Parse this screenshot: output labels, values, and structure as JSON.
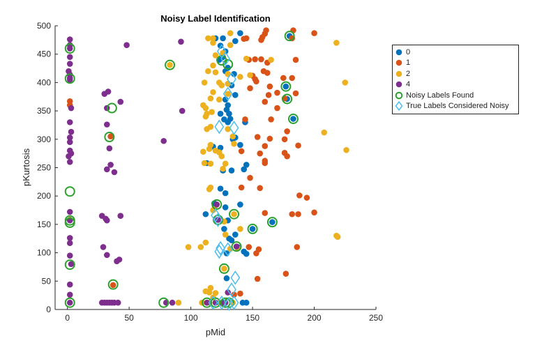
{
  "chart_data": {
    "type": "scatter",
    "title": "Noisy Label Identification",
    "xlabel": "pMid",
    "ylabel": "pKurtosis",
    "xlim": [
      -10,
      250
    ],
    "ylim": [
      0,
      500
    ],
    "xticks": [
      "0",
      "50",
      "100",
      "150",
      "200",
      "250"
    ],
    "yticks": [
      "0",
      "50",
      "100",
      "150",
      "200",
      "250",
      "300",
      "350",
      "400",
      "450",
      "500"
    ],
    "grid": false,
    "legend_position": "outside-top-right",
    "series": [
      {
        "name": "0",
        "color": "#0072BD",
        "marker": "filled-circle",
        "points": [
          [
            120,
            478
          ],
          [
            126,
            478
          ],
          [
            140,
            487
          ],
          [
            136,
            473
          ],
          [
            124,
            465
          ],
          [
            128,
            455
          ],
          [
            126,
            445
          ],
          [
            123,
            440
          ],
          [
            130,
            426
          ],
          [
            128,
            420
          ],
          [
            135,
            415
          ],
          [
            133,
            395
          ],
          [
            136,
            378
          ],
          [
            128,
            370
          ],
          [
            130,
            360
          ],
          [
            129,
            352
          ],
          [
            131,
            345
          ],
          [
            132,
            336
          ],
          [
            124,
            345
          ],
          [
            127,
            335
          ],
          [
            130,
            330
          ],
          [
            134,
            300
          ],
          [
            136,
            303
          ],
          [
            144,
            330
          ],
          [
            124,
            285
          ],
          [
            118,
            287
          ],
          [
            140,
            290
          ],
          [
            145,
            255
          ],
          [
            126,
            245
          ],
          [
            133,
            245
          ],
          [
            143,
            247
          ],
          [
            113,
            258
          ],
          [
            124,
            213
          ],
          [
            128,
            205
          ],
          [
            119,
            187
          ],
          [
            128,
            180
          ],
          [
            140,
            185
          ],
          [
            112,
            168
          ],
          [
            130,
            157
          ],
          [
            127,
            142
          ],
          [
            136,
            132
          ],
          [
            131,
            125
          ],
          [
            133,
            122
          ],
          [
            138,
            110
          ],
          [
            143,
            102
          ],
          [
            145,
            98
          ],
          [
            129,
            99
          ],
          [
            129,
            55
          ],
          [
            126,
            12
          ],
          [
            142,
            12
          ],
          [
            145,
            12
          ],
          [
            180,
            482
          ],
          [
            177,
            393
          ],
          [
            178,
            371
          ],
          [
            183,
            336
          ],
          [
            150,
            142
          ],
          [
            166,
            154
          ]
        ]
      },
      {
        "name": "1",
        "color": "#D95319",
        "marker": "filled-circle",
        "points": [
          [
            2,
            367
          ],
          [
            2,
            360
          ],
          [
            2,
            158
          ],
          [
            37,
            43
          ],
          [
            35,
            305
          ],
          [
            161,
            492
          ],
          [
            160,
            486
          ],
          [
            183,
            492
          ],
          [
            200,
            487
          ],
          [
            182,
            478
          ],
          [
            158,
            480
          ],
          [
            157,
            475
          ],
          [
            145,
            478
          ],
          [
            143,
            477
          ],
          [
            152,
            441
          ],
          [
            157,
            441
          ],
          [
            147,
            440
          ],
          [
            162,
            435
          ],
          [
            175,
            408
          ],
          [
            182,
            408
          ],
          [
            150,
            412
          ],
          [
            152,
            406
          ],
          [
            159,
            420
          ],
          [
            162,
            417
          ],
          [
            153,
            402
          ],
          [
            185,
            440
          ],
          [
            148,
            390
          ],
          [
            164,
            393
          ],
          [
            170,
            382
          ],
          [
            163,
            378
          ],
          [
            185,
            381
          ],
          [
            176,
            372
          ],
          [
            170,
            355
          ],
          [
            160,
            366
          ],
          [
            165,
            335
          ],
          [
            144,
            335
          ],
          [
            178,
            314
          ],
          [
            164,
            301
          ],
          [
            154,
            304
          ],
          [
            160,
            288
          ],
          [
            176,
            300
          ],
          [
            187,
            289
          ],
          [
            156,
            275
          ],
          [
            176,
            276
          ],
          [
            178,
            270
          ],
          [
            160,
            262
          ],
          [
            160,
            258
          ],
          [
            141,
            279
          ],
          [
            148,
            232
          ],
          [
            141,
            215
          ],
          [
            188,
            201
          ],
          [
            194,
            197
          ],
          [
            200,
            171
          ],
          [
            182,
            168
          ],
          [
            187,
            168
          ],
          [
            160,
            170
          ],
          [
            156,
            214
          ],
          [
            147,
            110
          ],
          [
            186,
            110
          ],
          [
            155,
            106
          ],
          [
            153,
            99
          ],
          [
            177,
            63
          ],
          [
            154,
            54
          ],
          [
            135,
            26
          ],
          [
            140,
            28
          ]
        ]
      },
      {
        "name": "2",
        "color": "#EDB120",
        "marker": "filled-circle",
        "points": [
          [
            114,
            478
          ],
          [
            118,
            478
          ],
          [
            132,
            487
          ],
          [
            118,
            470
          ],
          [
            132,
            466
          ],
          [
            120,
            448
          ],
          [
            126,
            452
          ],
          [
            118,
            430
          ],
          [
            114,
            420
          ],
          [
            120,
            418
          ],
          [
            123,
            400
          ],
          [
            125,
            395
          ],
          [
            130,
            398
          ],
          [
            130,
            415
          ],
          [
            130,
            380
          ],
          [
            123,
            370
          ],
          [
            116,
            372
          ],
          [
            118,
            383
          ],
          [
            111,
            400
          ],
          [
            110,
            360
          ],
          [
            112,
            355
          ],
          [
            113,
            345
          ],
          [
            112,
            340
          ],
          [
            117,
            348
          ],
          [
            116,
            322
          ],
          [
            116,
            290
          ],
          [
            115,
            283
          ],
          [
            120,
            280
          ],
          [
            123,
            277
          ],
          [
            125,
            270
          ],
          [
            110,
            278
          ],
          [
            111,
            258
          ],
          [
            116,
            257
          ],
          [
            128,
            257
          ],
          [
            126,
            248
          ],
          [
            135,
            292
          ],
          [
            134,
            305
          ],
          [
            130,
            318
          ],
          [
            113,
            318
          ],
          [
            145,
            442
          ],
          [
            140,
            410
          ],
          [
            148,
            413
          ],
          [
            165,
            440
          ],
          [
            116,
            215
          ],
          [
            115,
            212
          ],
          [
            119,
            177
          ],
          [
            118,
            175
          ],
          [
            127,
            155
          ],
          [
            140,
            142
          ],
          [
            128,
            132
          ],
          [
            138,
            108
          ],
          [
            132,
            107
          ],
          [
            108,
            110
          ],
          [
            112,
            118
          ],
          [
            98,
            110
          ],
          [
            116,
            38
          ],
          [
            112,
            32
          ],
          [
            115,
            30
          ],
          [
            120,
            29
          ],
          [
            118,
            21
          ],
          [
            109,
            12
          ],
          [
            115,
            12
          ],
          [
            123,
            12
          ],
          [
            134,
            12
          ],
          [
            218,
            470
          ],
          [
            225,
            400
          ],
          [
            208,
            312
          ],
          [
            226,
            281
          ],
          [
            218,
            130
          ],
          [
            219,
            128
          ],
          [
            90,
            12
          ],
          [
            83,
            431
          ],
          [
            127,
            72
          ],
          [
            135,
            168
          ]
        ]
      },
      {
        "name": "4",
        "color": "#7E2F8E",
        "marker": "filled-circle",
        "points": [
          [
            2,
            476
          ],
          [
            2,
            466
          ],
          [
            2,
            460
          ],
          [
            2,
            445
          ],
          [
            2,
            433
          ],
          [
            1,
            420
          ],
          [
            2,
            414
          ],
          [
            2,
            405
          ],
          [
            2,
            408
          ],
          [
            3,
            355
          ],
          [
            2,
            330
          ],
          [
            3,
            313
          ],
          [
            2,
            303
          ],
          [
            2,
            295
          ],
          [
            2,
            280
          ],
          [
            3,
            275
          ],
          [
            1,
            270
          ],
          [
            2,
            260
          ],
          [
            2,
            172
          ],
          [
            2,
            157
          ],
          [
            2,
            126
          ],
          [
            2,
            117
          ],
          [
            2,
            95
          ],
          [
            3,
            80
          ],
          [
            2,
            44
          ],
          [
            2,
            26
          ],
          [
            2,
            12
          ],
          [
            28,
            12
          ],
          [
            30,
            12
          ],
          [
            32,
            12
          ],
          [
            34,
            12
          ],
          [
            36,
            12
          ],
          [
            38,
            12
          ],
          [
            41,
            12
          ],
          [
            30,
            380
          ],
          [
            33,
            384
          ],
          [
            32,
            355
          ],
          [
            32,
            326
          ],
          [
            34,
            284
          ],
          [
            35,
            255
          ],
          [
            32,
            247
          ],
          [
            38,
            242
          ],
          [
            28,
            165
          ],
          [
            31,
            160
          ],
          [
            32,
            157
          ],
          [
            43,
            165
          ],
          [
            29,
            110
          ],
          [
            32,
            96
          ],
          [
            40,
            85
          ],
          [
            42,
            88
          ],
          [
            48,
            466
          ],
          [
            43,
            366
          ],
          [
            92,
            472
          ],
          [
            93,
            350
          ],
          [
            78,
            297
          ],
          [
            80,
            12
          ],
          [
            85,
            12
          ],
          [
            121,
            185
          ],
          [
            122,
            158
          ],
          [
            137,
            111
          ],
          [
            130,
            30
          ],
          [
            113,
            12
          ],
          [
            120,
            12
          ],
          [
            128,
            12
          ],
          [
            126,
            10
          ]
        ]
      }
    ],
    "noisy_labels_found": {
      "name": "Noisy Labels Found",
      "color": "#2CA02C",
      "marker": "open-circle",
      "points": [
        [
          2,
          460
        ],
        [
          2,
          407
        ],
        [
          36,
          355
        ],
        [
          34,
          304
        ],
        [
          2,
          208
        ],
        [
          2,
          157
        ],
        [
          2,
          153
        ],
        [
          2,
          79
        ],
        [
          37,
          44
        ],
        [
          2,
          12
        ],
        [
          83,
          431
        ],
        [
          180,
          482
        ],
        [
          177,
          393
        ],
        [
          178,
          371
        ],
        [
          183,
          336
        ],
        [
          125,
          439
        ],
        [
          130,
          432
        ],
        [
          121,
          185
        ],
        [
          135,
          168
        ],
        [
          150,
          142
        ],
        [
          166,
          154
        ],
        [
          122,
          158
        ],
        [
          137,
          111
        ],
        [
          127,
          72
        ],
        [
          78,
          12
        ],
        [
          113,
          12
        ],
        [
          120,
          12
        ],
        [
          128,
          12
        ],
        [
          131,
          12
        ]
      ]
    },
    "true_labels_noisy": {
      "name": "True Labels Considered Noisy",
      "color": "#4DBEEE",
      "marker": "open-diamond",
      "points": [
        [
          125,
          455
        ],
        [
          128,
          442
        ],
        [
          133,
          406
        ],
        [
          130,
          380
        ],
        [
          123,
          322
        ],
        [
          135,
          320
        ],
        [
          120,
          166
        ],
        [
          122,
          158
        ],
        [
          124,
          108
        ],
        [
          123,
          102
        ],
        [
          130,
          106
        ],
        [
          136,
          56
        ],
        [
          133,
          35
        ],
        [
          135,
          12
        ],
        [
          118,
          12
        ],
        [
          125,
          12
        ],
        [
          131,
          10
        ]
      ]
    }
  }
}
